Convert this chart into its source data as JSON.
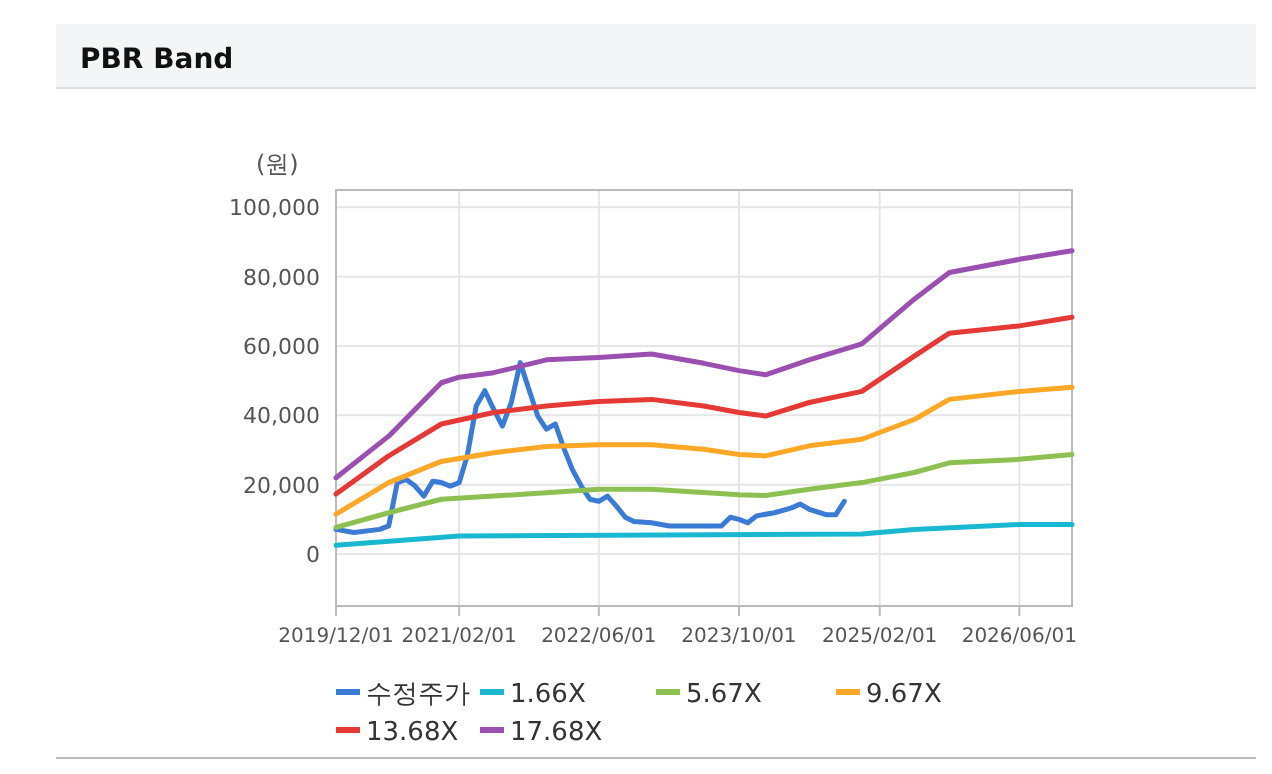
{
  "chart_data": {
    "type": "line",
    "title": "PBR Band",
    "ylabel": "(원)",
    "xlim": [
      "2019-12-01",
      "2026-12-01"
    ],
    "ylim": [
      -15000,
      105000
    ],
    "xticks": [
      {
        "value": "2019-12-01",
        "label": "2019/12/01"
      },
      {
        "value": "2021-02-01",
        "label": "2021/02/01"
      },
      {
        "value": "2022-06-01",
        "label": "2022/06/01"
      },
      {
        "value": "2023-10-01",
        "label": "2023/10/01"
      },
      {
        "value": "2025-02-01",
        "label": "2025/02/01"
      },
      {
        "value": "2026-06-01",
        "label": "2026/06/01"
      }
    ],
    "yticks": [
      {
        "value": 0,
        "label": "0"
      },
      {
        "value": 20000,
        "label": "20,000"
      },
      {
        "value": 40000,
        "label": "40,000"
      },
      {
        "value": 60000,
        "label": "60,000"
      },
      {
        "value": 80000,
        "label": "80,000"
      },
      {
        "value": 100000,
        "label": "100,000"
      }
    ],
    "grid": true,
    "legend": "bottom",
    "marker": "none",
    "line_style": "solid",
    "series": [
      {
        "name": "수정주가",
        "color": "#3a7bd5",
        "x": [
          "2019-12-01",
          "2020-02-01",
          "2020-05-01",
          "2020-06-01",
          "2020-07-01",
          "2020-08-01",
          "2020-09-01",
          "2020-10-01",
          "2020-11-01",
          "2020-12-01",
          "2021-01-01",
          "2021-02-01",
          "2021-03-01",
          "2021-04-01",
          "2021-05-01",
          "2021-06-01",
          "2021-07-01",
          "2021-08-01",
          "2021-09-01",
          "2021-10-01",
          "2021-11-01",
          "2021-12-01",
          "2022-01-01",
          "2022-02-01",
          "2022-03-01",
          "2022-04-01",
          "2022-05-01",
          "2022-06-01",
          "2022-07-01",
          "2022-08-01",
          "2022-09-01",
          "2022-10-01",
          "2022-12-01",
          "2023-02-01",
          "2023-06-01",
          "2023-08-01",
          "2023-09-01",
          "2023-10-01",
          "2023-11-01",
          "2023-12-01",
          "2024-02-01",
          "2024-04-01",
          "2024-05-01",
          "2024-06-01",
          "2024-08-01",
          "2024-09-01",
          "2024-10-01"
        ],
        "values": [
          7100,
          6200,
          7100,
          8100,
          20600,
          21500,
          19600,
          16700,
          21000,
          20600,
          19600,
          20600,
          28300,
          42700,
          47100,
          41700,
          36900,
          43700,
          55200,
          47500,
          39800,
          36000,
          37500,
          30200,
          24400,
          19600,
          15800,
          15200,
          16700,
          13800,
          10600,
          9400,
          9000,
          8100,
          8100,
          8100,
          10600,
          10000,
          9000,
          11000,
          11900,
          13300,
          14400,
          12900,
          11300,
          11300,
          15200
        ]
      },
      {
        "name": "1.66X",
        "color": "#1ab8d0",
        "x": [
          "2019-12-01",
          "2021-02-01",
          "2024-12-01",
          "2025-06-01",
          "2026-06-01",
          "2026-12-01"
        ],
        "values": [
          2500,
          5200,
          5800,
          7100,
          8500,
          8500
        ]
      },
      {
        "name": "5.67X",
        "color": "#8cc152",
        "x": [
          "2019-12-01",
          "2020-06-01",
          "2020-12-01",
          "2021-06-01",
          "2022-06-01",
          "2022-12-01",
          "2023-10-01",
          "2024-01-01",
          "2024-06-01",
          "2024-12-01",
          "2025-06-01",
          "2025-10-01",
          "2026-06-01",
          "2026-12-01"
        ],
        "values": [
          7700,
          11900,
          15800,
          16700,
          18700,
          18700,
          17100,
          16900,
          18700,
          20600,
          23500,
          26300,
          27300,
          28700
        ]
      },
      {
        "name": "9.67X",
        "color": "#ffa726",
        "x": [
          "2019-12-01",
          "2020-06-01",
          "2020-12-01",
          "2021-06-01",
          "2021-12-01",
          "2022-06-01",
          "2022-12-01",
          "2023-06-01",
          "2023-10-01",
          "2024-01-01",
          "2024-06-01",
          "2024-12-01",
          "2025-06-01",
          "2025-10-01",
          "2026-06-01",
          "2026-12-01"
        ],
        "values": [
          11500,
          20600,
          26700,
          29200,
          31000,
          31500,
          31500,
          30200,
          28700,
          28300,
          31200,
          33100,
          38800,
          44600,
          46900,
          48100
        ]
      },
      {
        "name": "13.68X",
        "color": "#e53935",
        "x": [
          "2019-12-01",
          "2020-06-01",
          "2020-12-01",
          "2021-06-01",
          "2021-12-01",
          "2022-06-01",
          "2022-12-01",
          "2023-06-01",
          "2023-10-01",
          "2024-01-01",
          "2024-06-01",
          "2024-12-01",
          "2025-06-01",
          "2025-10-01",
          "2026-06-01",
          "2026-12-01"
        ],
        "values": [
          17300,
          28300,
          37500,
          40800,
          42700,
          44000,
          44600,
          42700,
          40800,
          39800,
          43700,
          46900,
          57100,
          63700,
          65800,
          68300
        ]
      },
      {
        "name": "17.68X",
        "color": "#9b4fb0",
        "x": [
          "2019-12-01",
          "2020-06-01",
          "2020-12-01",
          "2021-02-01",
          "2021-06-01",
          "2021-12-01",
          "2022-06-01",
          "2022-12-01",
          "2023-06-01",
          "2023-10-01",
          "2024-01-01",
          "2024-06-01",
          "2024-12-01",
          "2025-06-01",
          "2025-10-01",
          "2026-06-01",
          "2026-12-01"
        ],
        "values": [
          22000,
          34000,
          49400,
          51000,
          52300,
          56000,
          56700,
          57700,
          55000,
          52900,
          51700,
          56000,
          60600,
          73500,
          81200,
          85000,
          87500
        ]
      }
    ]
  }
}
